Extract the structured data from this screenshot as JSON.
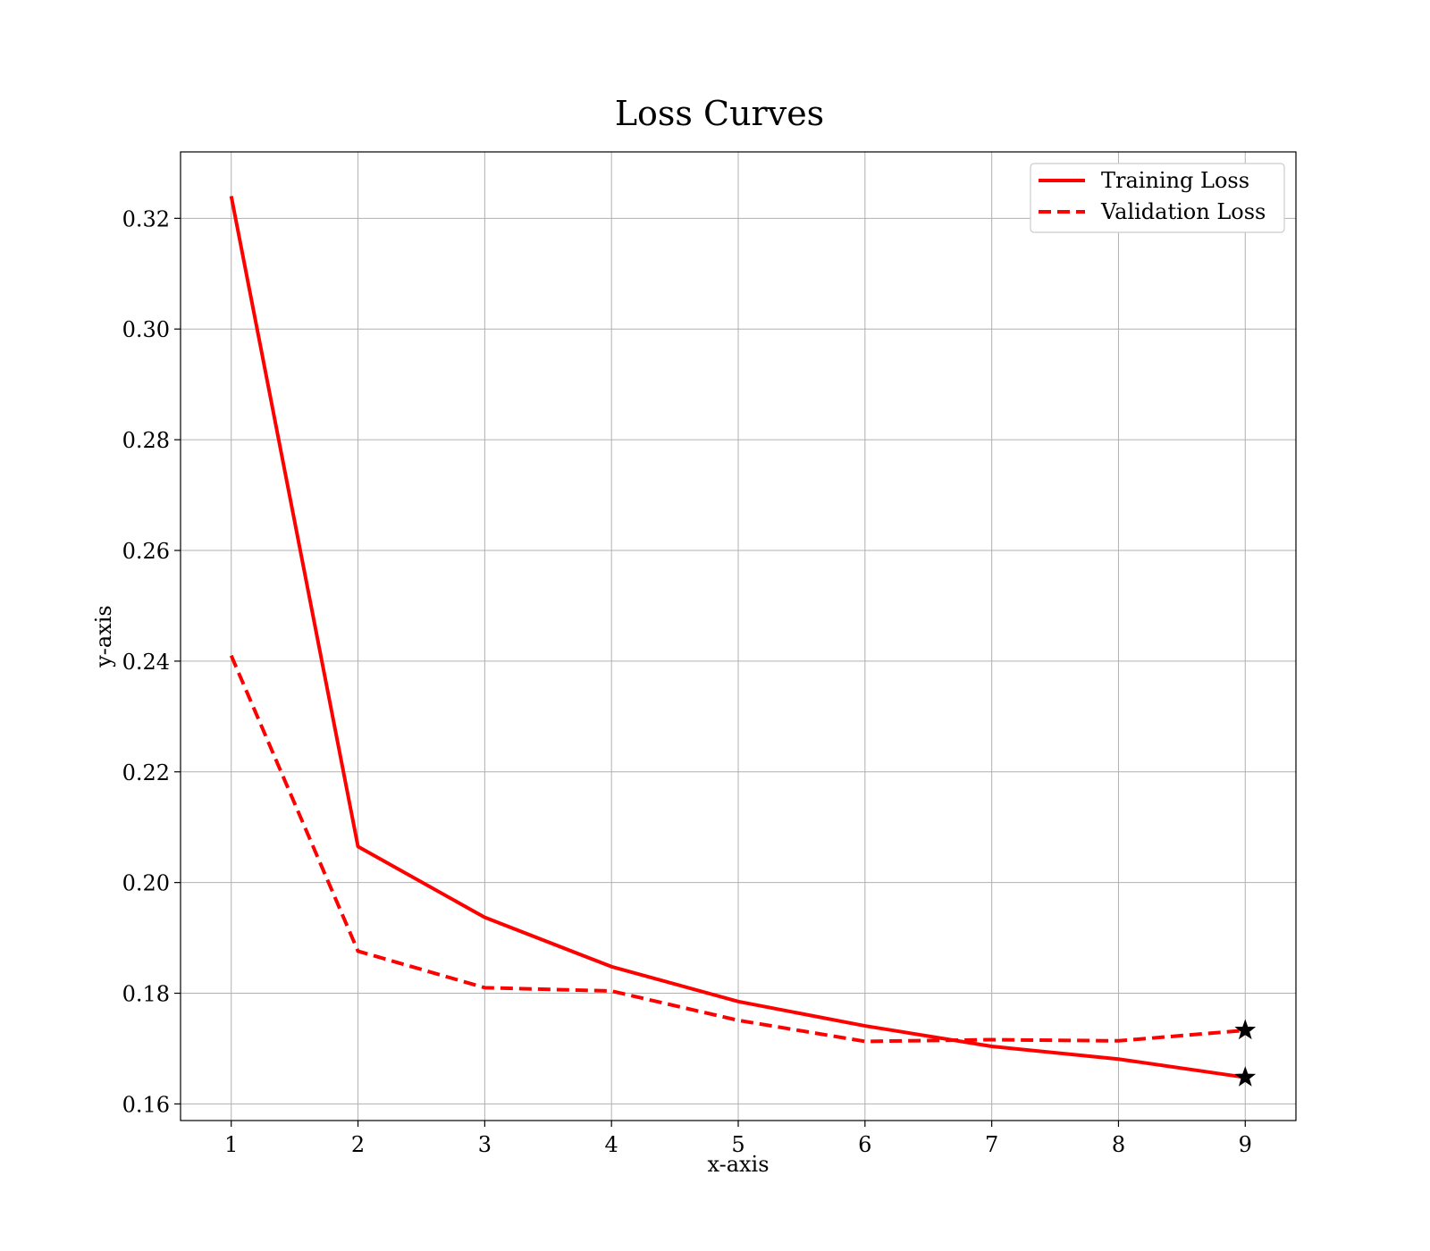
{
  "chart_data": {
    "type": "line",
    "title": "Loss Curves",
    "xlabel": "x-axis",
    "ylabel": "y-axis",
    "x": [
      1,
      2,
      3,
      4,
      5,
      6,
      7,
      8,
      9
    ],
    "xticks": [
      "1",
      "2",
      "3",
      "4",
      "5",
      "6",
      "7",
      "8",
      "9"
    ],
    "yticks": [
      "0.16",
      "0.18",
      "0.20",
      "0.22",
      "0.24",
      "0.26",
      "0.28",
      "0.30",
      "0.32"
    ],
    "xlim": [
      0.6,
      9.4
    ],
    "ylim": [
      0.157,
      0.332
    ],
    "grid": true,
    "legend_position": "top-right",
    "series": [
      {
        "name": "Training Loss",
        "color": "#ff0000",
        "linestyle": "solid",
        "values": [
          0.324,
          0.2065,
          0.1937,
          0.1848,
          0.1785,
          0.1741,
          0.1704,
          0.1681,
          0.1648
        ]
      },
      {
        "name": "Validation Loss",
        "color": "#ff0000",
        "linestyle": "dashed",
        "values": [
          0.241,
          0.1876,
          0.181,
          0.1804,
          0.1751,
          0.1713,
          0.1716,
          0.1714,
          0.1733
        ]
      }
    ],
    "markers": [
      {
        "series": "Training Loss",
        "x": 9,
        "y": 0.1648,
        "shape": "star-icon"
      },
      {
        "series": "Validation Loss",
        "x": 9,
        "y": 0.1733,
        "shape": "star-icon"
      }
    ]
  }
}
